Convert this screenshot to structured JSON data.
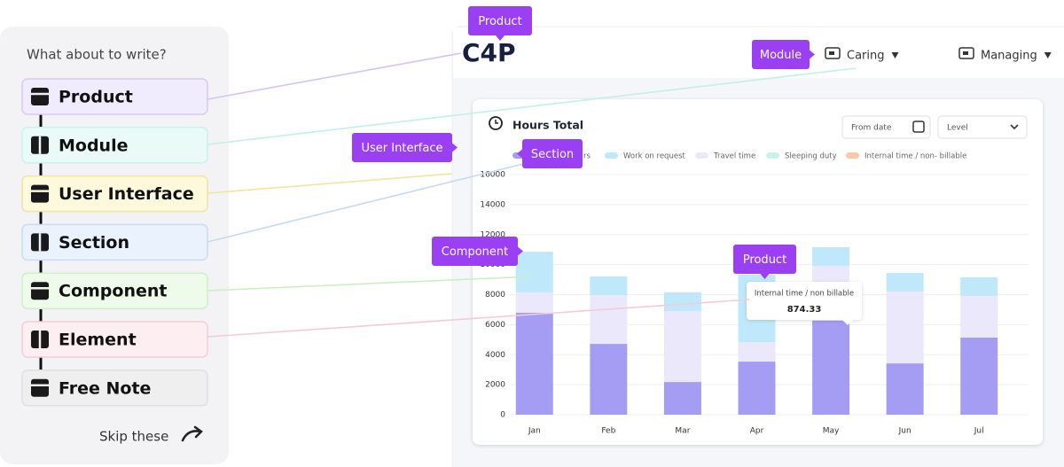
{
  "sidebar": {
    "prompt": "What about to write?",
    "items": [
      "Product",
      "Module",
      "User Interface",
      "Section",
      "Component",
      "Element",
      "Free Note"
    ],
    "skip": "Skip these"
  },
  "app": {
    "logo": "C4P",
    "nav": [
      "Caring",
      "Managing"
    ],
    "filters": {
      "date": "From date",
      "level": "Level"
    }
  },
  "tags": [
    "Product",
    "Module",
    "User Interface",
    "Section",
    "Component",
    "Product"
  ],
  "chart": {
    "type": "bar",
    "stacked": true,
    "title": "Hours Total",
    "categories": [
      "Jan",
      "Feb",
      "Mar",
      "Apr",
      "May",
      "Jun",
      "Jul"
    ],
    "series": [
      {
        "name": "rs",
        "color": "#a59df4",
        "values": [
          6800,
          4720,
          2180,
          3540,
          6260,
          3420,
          5140
        ]
      },
      {
        "name": "Travel time",
        "color": "#ebe8fb",
        "values": [
          1350,
          3250,
          4720,
          1300,
          3660,
          4790,
          2770
        ]
      },
      {
        "name": "Work on request",
        "color": "#bfe9fa",
        "values": [
          2710,
          1240,
          1250,
          4490,
          1240,
          1240,
          1240
        ]
      }
    ],
    "legend_extra": [
      {
        "name": "Sleeping duty",
        "color": "#c7f3ea"
      },
      {
        "name": "Internal time / non- billable",
        "color": "#fbc8a8"
      }
    ],
    "ylim": [
      0,
      16000
    ],
    "yticks": [
      0,
      2000,
      4000,
      6000,
      8000,
      10000,
      12000,
      14000,
      16000
    ],
    "grid": true,
    "tooltip": {
      "label": "Internal time / non billable",
      "value": 874.33
    }
  }
}
